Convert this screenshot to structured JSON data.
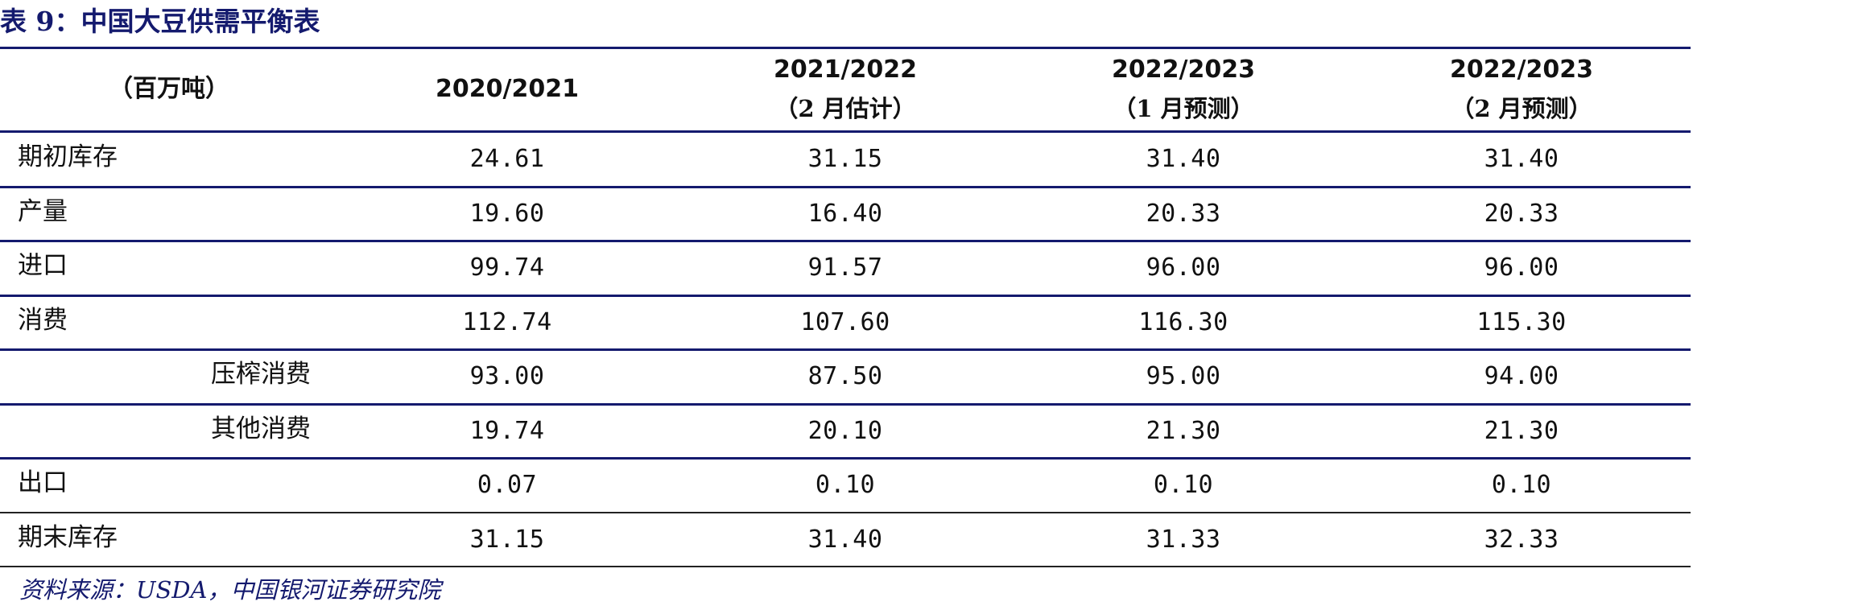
{
  "title": "表 9：中国大豆供需平衡表",
  "table": {
    "unit_label": "（百万吨）",
    "columns": [
      {
        "line1": "2020/2021",
        "line2": ""
      },
      {
        "line1": "2021/2022",
        "line2": "（2 月估计）"
      },
      {
        "line1": "2022/2023",
        "line2": "（1 月预测）"
      },
      {
        "line1": "2022/2023",
        "line2": "（2 月预测）"
      }
    ],
    "rows": [
      {
        "label": "期初库存",
        "sub": false,
        "values": [
          "24.61",
          "31.15",
          "31.40",
          "31.40"
        ]
      },
      {
        "label": "产量",
        "sub": false,
        "values": [
          "19.60",
          "16.40",
          "20.33",
          "20.33"
        ]
      },
      {
        "label": "进口",
        "sub": false,
        "values": [
          "99.74",
          "91.57",
          "96.00",
          "96.00"
        ]
      },
      {
        "label": "消费",
        "sub": false,
        "values": [
          "112.74",
          "107.60",
          "116.30",
          "115.30"
        ]
      },
      {
        "label": "压榨消费",
        "sub": true,
        "values": [
          "93.00",
          "87.50",
          "95.00",
          "94.00"
        ]
      },
      {
        "label": "其他消费",
        "sub": true,
        "values": [
          "19.74",
          "20.10",
          "21.30",
          "21.30"
        ]
      },
      {
        "label": "出口",
        "sub": false,
        "values": [
          "0.07",
          "0.10",
          "0.10",
          "0.10"
        ]
      },
      {
        "label": "期末库存",
        "sub": false,
        "values": [
          "31.15",
          "31.40",
          "31.33",
          "32.33"
        ]
      }
    ]
  },
  "source": "资料来源：USDA，中国银河证券研究院",
  "colors": {
    "accent": "#141a6e",
    "rule": "#141a6e",
    "text": "#111111"
  }
}
